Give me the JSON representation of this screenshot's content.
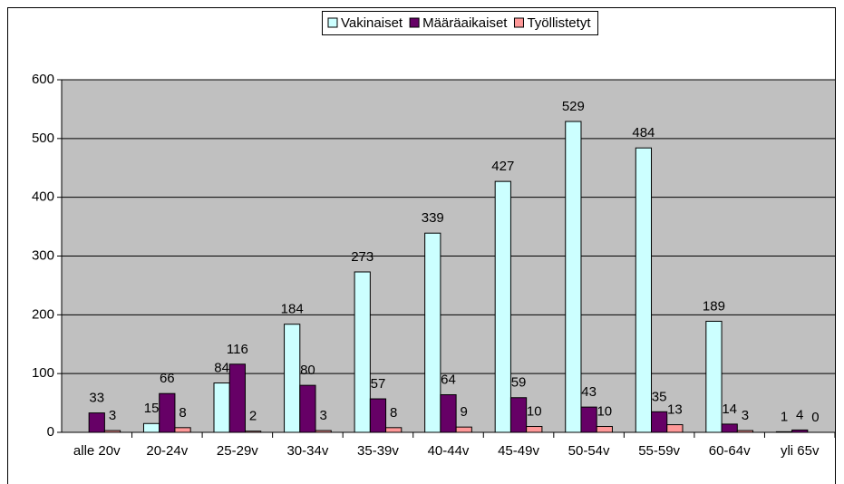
{
  "chart_data": {
    "type": "bar",
    "categories": [
      "alle 20v",
      "20-24v",
      "25-29v",
      "30-34v",
      "35-39v",
      "40-44v",
      "45-49v",
      "50-54v",
      "55-59v",
      "60-64v",
      "yli 65v"
    ],
    "series": [
      {
        "name": "Vakinaiset",
        "color": "#ccffff",
        "values": [
          null,
          15,
          84,
          184,
          273,
          339,
          427,
          529,
          484,
          189,
          1
        ]
      },
      {
        "name": "Määräaikaiset",
        "color": "#660066",
        "values": [
          33,
          66,
          116,
          80,
          57,
          64,
          59,
          43,
          35,
          14,
          4
        ]
      },
      {
        "name": "Työllistetyt",
        "color": "#ff9999",
        "values": [
          3,
          8,
          2,
          3,
          8,
          9,
          10,
          10,
          13,
          3,
          0
        ]
      }
    ],
    "ylim": [
      0,
      600
    ],
    "yticks": [
      0,
      100,
      200,
      300,
      400,
      500,
      600
    ],
    "grid": true,
    "legend": "top"
  }
}
